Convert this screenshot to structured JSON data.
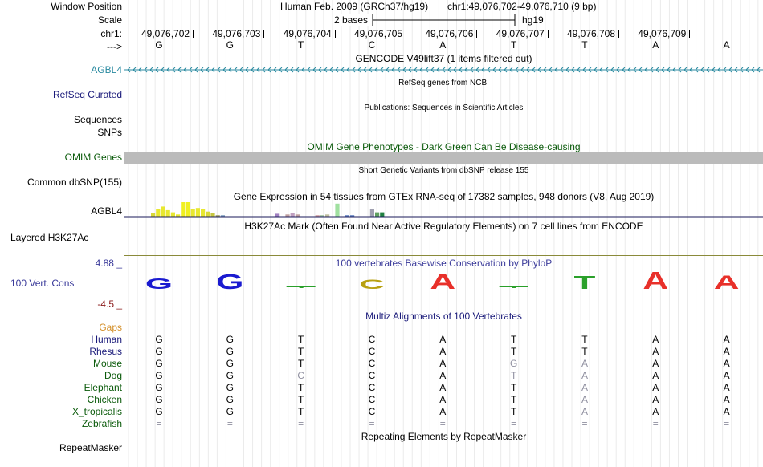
{
  "header": {
    "window_position_label": "Window Position",
    "scale_label": "Scale",
    "chrom_label": "chr1:",
    "strand_label": "--->",
    "assembly": "Human Feb. 2009 (GRCh37/hg19)",
    "position": "chr1:49,076,702-49,076,710 (9 bp)",
    "scale_text": "2 bases",
    "scale_db": "hg19",
    "coords": [
      "49,076,702",
      "49,076,703",
      "49,076,704",
      "49,076,705",
      "49,076,706",
      "49,076,707",
      "49,076,708",
      "49,076,709"
    ],
    "bases": [
      "G",
      "G",
      "T",
      "C",
      "A",
      "T",
      "T",
      "A",
      "A"
    ]
  },
  "tracks": {
    "gencode": {
      "title": "GENCODE V49lift37 (1 items filtered out)",
      "label": "AGBL4"
    },
    "refseq": {
      "title": "RefSeq genes from NCBI",
      "label": "RefSeq Curated"
    },
    "publications": {
      "title": "Publications: Sequences in Scientific Articles",
      "label1": "Sequences",
      "label2": "SNPs"
    },
    "omim": {
      "title": "OMIM Gene Phenotypes - Dark Green Can Be Disease-causing",
      "label": "OMIM Genes"
    },
    "dbsnp": {
      "title": "Short Genetic Variants from dbSNP release 155",
      "label": "Common dbSNP(155)"
    },
    "gtex": {
      "title": "Gene Expression in 54 tissues from GTEx RNA-seq of 17382 samples, 948 donors (V8, Aug 2019)",
      "label": "AGBL4",
      "bars": [
        {
          "v": 0.25,
          "c": "#d8d838"
        },
        {
          "v": 0.5,
          "c": "#e8e830"
        },
        {
          "v": 0.7,
          "c": "#e8e830"
        },
        {
          "v": 0.45,
          "c": "#e8e830"
        },
        {
          "v": 0.3,
          "c": "#e8e830"
        },
        {
          "v": 0.15,
          "c": "#e8e830"
        },
        {
          "v": 1.0,
          "c": "#f0f020"
        },
        {
          "v": 1.0,
          "c": "#f0f020"
        },
        {
          "v": 0.55,
          "c": "#e8e830"
        },
        {
          "v": 0.6,
          "c": "#e8e830"
        },
        {
          "v": 0.55,
          "c": "#e8e830"
        },
        {
          "v": 0.35,
          "c": "#d8d838"
        },
        {
          "v": 0.25,
          "c": "#c8c840"
        },
        {
          "v": 0.1,
          "c": "#a0a060"
        },
        {
          "v": 0.1,
          "c": "#80a0c0"
        }
      ],
      "extra_bars": [
        {
          "i": 30,
          "v": 0.2,
          "c": "#a080c0"
        },
        {
          "i": 32,
          "v": 0.15,
          "c": "#c0a0a0"
        },
        {
          "i": 33,
          "v": 0.25,
          "c": "#c0a0c0"
        },
        {
          "i": 34,
          "v": 0.15,
          "c": "#c0a0a0"
        },
        {
          "i": 38,
          "v": 0.1,
          "c": "#d0a0a0"
        },
        {
          "i": 39,
          "v": 0.1,
          "c": "#a0c0a0"
        },
        {
          "i": 40,
          "v": 0.15,
          "c": "#c0c0a0"
        },
        {
          "i": 42,
          "v": 0.9,
          "c": "#a0e0a0"
        },
        {
          "i": 44,
          "v": 0.1,
          "c": "#6080c0"
        },
        {
          "i": 45,
          "v": 0.1,
          "c": "#6080c0"
        },
        {
          "i": 49,
          "v": 0.55,
          "c": "#a0a0b0"
        },
        {
          "i": 50,
          "v": 0.3,
          "c": "#60a060"
        },
        {
          "i": 51,
          "v": 0.3,
          "c": "#208040"
        }
      ]
    },
    "h3k27ac": {
      "title": "H3K27Ac Mark (Often Found Near Active Regulatory Elements) on 7 cell lines from ENCODE",
      "label": "Layered H3K27Ac"
    },
    "phylop": {
      "title": "100 vertebrates Basewise Conservation by PhyloP",
      "label": "100 Vert. Cons",
      "max": "4.88 _",
      "min": "-4.5 _",
      "scores": [
        0.6,
        0.85,
        -0.1,
        0.55,
        0.9,
        -0.15,
        0.75,
        1.0,
        0.8
      ]
    },
    "multiz": {
      "title": "Multiz Alignments of 100 Vertebrates",
      "gaps_label": "Gaps",
      "species": [
        {
          "name": "Human",
          "seq": [
            "G",
            "G",
            "T",
            "C",
            "A",
            "T",
            "T",
            "A",
            "A"
          ],
          "dim": []
        },
        {
          "name": "Rhesus",
          "seq": [
            "G",
            "G",
            "T",
            "C",
            "A",
            "T",
            "T",
            "A",
            "A"
          ],
          "dim": []
        },
        {
          "name": "Mouse",
          "seq": [
            "G",
            "G",
            "T",
            "C",
            "A",
            "G",
            "A",
            "A",
            "A"
          ],
          "dim": [
            5,
            6
          ]
        },
        {
          "name": "Dog",
          "seq": [
            "G",
            "G",
            "C",
            "C",
            "A",
            "T",
            "A",
            "A",
            "A"
          ],
          "dim": [
            2,
            5,
            6
          ]
        },
        {
          "name": "Elephant",
          "seq": [
            "G",
            "G",
            "T",
            "C",
            "A",
            "T",
            "A",
            "A",
            "A"
          ],
          "dim": [
            6
          ]
        },
        {
          "name": "Chicken",
          "seq": [
            "G",
            "G",
            "T",
            "C",
            "A",
            "T",
            "A",
            "A",
            "A"
          ],
          "dim": [
            6
          ]
        },
        {
          "name": "X_tropicalis",
          "seq": [
            "G",
            "G",
            "T",
            "C",
            "A",
            "T",
            "A",
            "A",
            "A"
          ],
          "dim": [
            6
          ]
        },
        {
          "name": "Zebrafish",
          "seq": [
            "=",
            "=",
            "=",
            "=",
            "=",
            "=",
            "=",
            "=",
            "="
          ],
          "dim": [
            0,
            1,
            2,
            3,
            4,
            5,
            6,
            7,
            8
          ]
        }
      ]
    },
    "repeatmasker": {
      "title": "Repeating Elements by RepeatMasker",
      "label": "RepeatMasker"
    }
  },
  "colors": {
    "label_blue": "#1a1a7a",
    "label_teal": "#2a8aa0",
    "label_green": "#0a5a0a",
    "gaps_orange": "#d4902a",
    "phylop_blue": "#3a3a9a",
    "phylop_red": "#8a1a1a",
    "base_A": "#e8302a",
    "base_C": "#b8a010",
    "base_G": "#1a1ad0",
    "base_T": "#2aa02a"
  }
}
